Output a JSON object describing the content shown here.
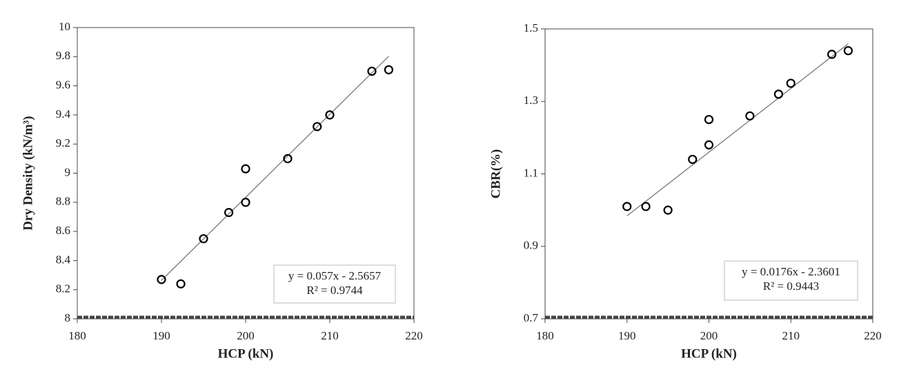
{
  "chart_data": [
    {
      "type": "scatter",
      "x_label": "HCP (kN)",
      "y_label": "Dry Density (kN/m³)",
      "x": [
        190,
        192.3,
        195,
        198,
        200,
        200,
        205,
        208.5,
        210,
        215,
        217
      ],
      "values": [
        8.27,
        8.24,
        8.55,
        8.73,
        9.03,
        8.8,
        9.1,
        9.32,
        9.4,
        9.7,
        9.71
      ],
      "color": "#000000",
      "trendline": {
        "x": [
          190,
          217
        ],
        "values": [
          8.264,
          9.803
        ]
      },
      "annotations": [
        "y = 0.057x - 2.5657",
        "R² = 0.9744"
      ],
      "xlim": [
        180,
        220
      ],
      "xticks": [
        180,
        190,
        200,
        210,
        220
      ],
      "ylim": [
        8,
        10
      ],
      "yticks": [
        8,
        8.2,
        8.4,
        8.6,
        8.8,
        9,
        9.2,
        9.4,
        9.6,
        9.8,
        10
      ]
    },
    {
      "type": "scatter",
      "x_label": "HCP (kN)",
      "y_label": "CBR(%)",
      "x": [
        190,
        192.3,
        195,
        198,
        200,
        200,
        205,
        208.5,
        210,
        215,
        217
      ],
      "values": [
        1.01,
        1.01,
        1.0,
        1.14,
        1.25,
        1.18,
        1.26,
        1.32,
        1.35,
        1.43,
        1.44
      ],
      "color": "#000000",
      "trendline": {
        "x": [
          190,
          217
        ],
        "values": [
          0.984,
          1.459
        ]
      },
      "annotations": [
        "y = 0.0176x - 2.3601",
        "R² = 0.9443"
      ],
      "xlim": [
        180,
        220
      ],
      "xticks": [
        180,
        190,
        200,
        210,
        220
      ],
      "ylim": [
        0.7,
        1.5
      ],
      "yticks": [
        0.7,
        0.9,
        1.1,
        1.3,
        1.5
      ]
    }
  ]
}
